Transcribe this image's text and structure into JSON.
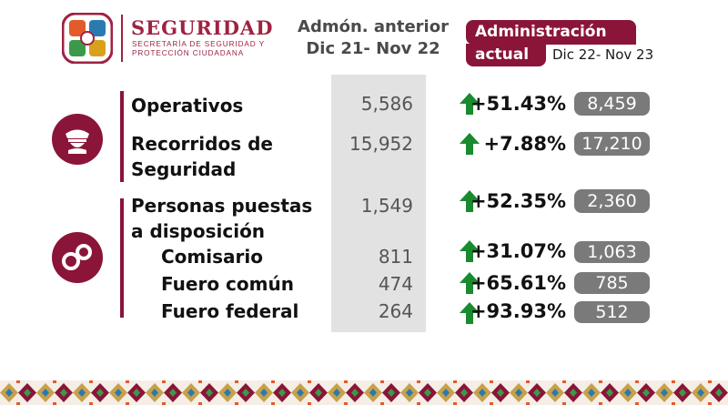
{
  "header": {
    "brand_title": "SEGURIDAD",
    "brand_sub_1": "SECRETARÍA DE SEGURIDAD Y",
    "brand_sub_2": "PROTECCIÓN CIUDADANA",
    "prev_title": "Admón. anterior",
    "prev_dates": "Dic 21- Nov 22",
    "curr_title_1": "Administración",
    "curr_title_2": "actual",
    "curr_dates": "Dic 22- Nov 23"
  },
  "sections": [
    {
      "icon": "police-cap-icon"
    },
    {
      "icon": "handcuffs-icon"
    }
  ],
  "rows": [
    {
      "label": "Operativos",
      "prev": "5,586",
      "pct": "+51.43%",
      "curr": "8,459"
    },
    {
      "label_1": "Recorridos de",
      "label_2": "Seguridad",
      "prev": "15,952",
      "pct": "+7.88%",
      "curr": "17,210"
    },
    {
      "label_1": "Personas puestas",
      "label_2": "a disposición",
      "prev": "1,549",
      "pct": "+52.35%",
      "curr": "2,360"
    },
    {
      "label": "Comisario",
      "prev": "811",
      "pct": "+31.07%",
      "curr": "1,063"
    },
    {
      "label": "Fuero común",
      "prev": "474",
      "pct": "+65.61%",
      "curr": "785"
    },
    {
      "label": "Fuero federal",
      "prev": "264",
      "pct": "+93.93%",
      "curr": "512"
    }
  ],
  "colors": {
    "brand": "#9f2241",
    "accent": "#8a1538",
    "arrow": "#1a8a2e",
    "pill": "#7a7a7a",
    "prev_col": "#e2e2e2"
  }
}
